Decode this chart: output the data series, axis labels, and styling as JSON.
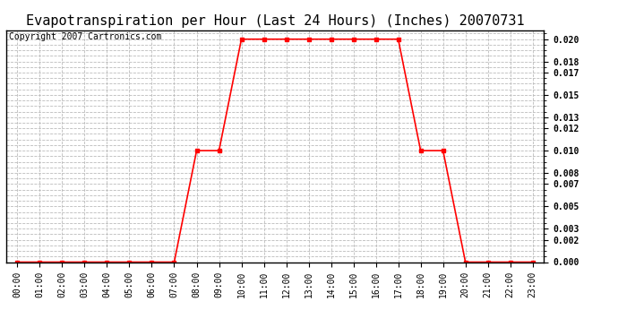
{
  "title": "Evapotranspiration per Hour (Last 24 Hours) (Inches) 20070731",
  "copyright": "Copyright 2007 Cartronics.com",
  "hours": [
    "00:00",
    "01:00",
    "02:00",
    "03:00",
    "04:00",
    "05:00",
    "06:00",
    "07:00",
    "08:00",
    "09:00",
    "10:00",
    "11:00",
    "12:00",
    "13:00",
    "14:00",
    "15:00",
    "16:00",
    "17:00",
    "18:00",
    "19:00",
    "20:00",
    "21:00",
    "22:00",
    "23:00"
  ],
  "values": [
    0.0,
    0.0,
    0.0,
    0.0,
    0.0,
    0.0,
    0.0,
    0.0,
    0.01,
    0.01,
    0.02,
    0.02,
    0.02,
    0.02,
    0.02,
    0.02,
    0.02,
    0.02,
    0.01,
    0.01,
    0.0,
    0.0,
    0.0,
    0.0
  ],
  "line_color": "#ff0000",
  "marker": "s",
  "marker_size": 3,
  "bg_color": "#ffffff",
  "grid_color": "#bbbbbb",
  "yticks": [
    0.0,
    0.002,
    0.003,
    0.005,
    0.007,
    0.008,
    0.01,
    0.012,
    0.013,
    0.015,
    0.017,
    0.018,
    0.02
  ],
  "ylim": [
    0.0,
    0.0208
  ],
  "title_fontsize": 11,
  "tick_fontsize": 7,
  "copyright_fontsize": 7
}
